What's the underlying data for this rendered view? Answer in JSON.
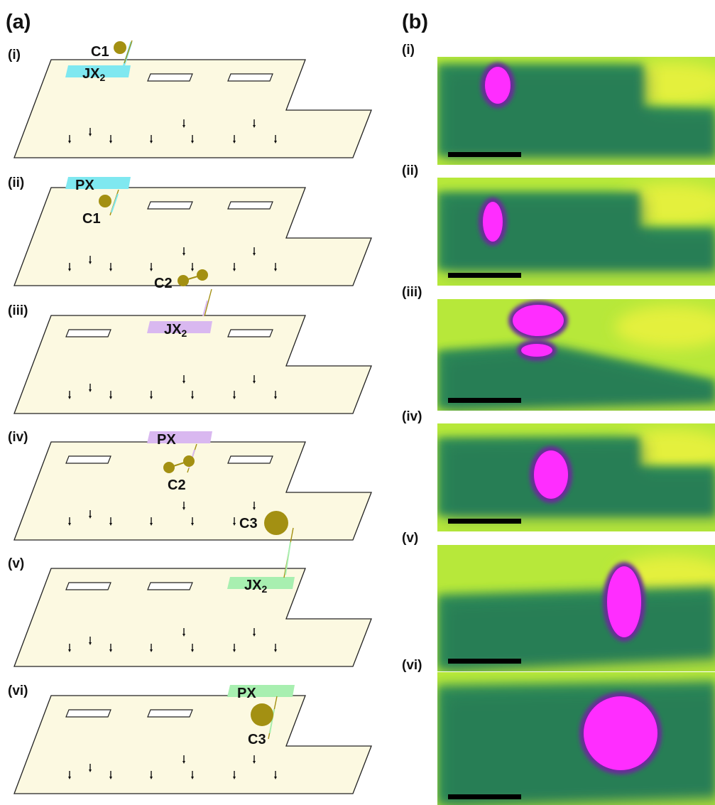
{
  "panels": {
    "a": "(a)",
    "b": "(b)"
  },
  "rows": [
    {
      "label": "(i)",
      "bar": "JX",
      "bar_sub": "2",
      "cable": "C1",
      "color": "#7fe8f0",
      "col": 0,
      "variant": "jx"
    },
    {
      "label": "(ii)",
      "bar": "PX",
      "bar_sub": "",
      "cable": "C1",
      "color": "#7fe8f0",
      "col": 0,
      "variant": "px"
    },
    {
      "label": "(iii)",
      "bar": "JX",
      "bar_sub": "2",
      "cable": "C2",
      "color": "#d9b8f0",
      "col": 1,
      "variant": "jx"
    },
    {
      "label": "(iv)",
      "bar": "PX",
      "bar_sub": "",
      "cable": "C2",
      "color": "#d9b8f0",
      "col": 1,
      "variant": "px"
    },
    {
      "label": "(v)",
      "bar": "JX",
      "bar_sub": "2",
      "cable": "C3",
      "color": "#a8efb0",
      "col": 2,
      "variant": "jx"
    },
    {
      "label": "(vi)",
      "bar": "PX",
      "bar_sub": "",
      "cable": "C3",
      "color": "#a8efb0",
      "col": 2,
      "variant": "px"
    }
  ],
  "images": [
    {
      "label": "(i)"
    },
    {
      "label": "(ii)"
    },
    {
      "label": "(iii)"
    },
    {
      "label": "(iv)"
    },
    {
      "label": "(v)"
    },
    {
      "label": "(vi)"
    }
  ],
  "colors": {
    "floor_fill": "#fcf9e1",
    "cable": "#a39012",
    "heat_bg": "#b7e83a",
    "heat_band": "#2f8f57",
    "heat_dark": "#1c5f55",
    "heat_hot": "#ff2dff"
  }
}
